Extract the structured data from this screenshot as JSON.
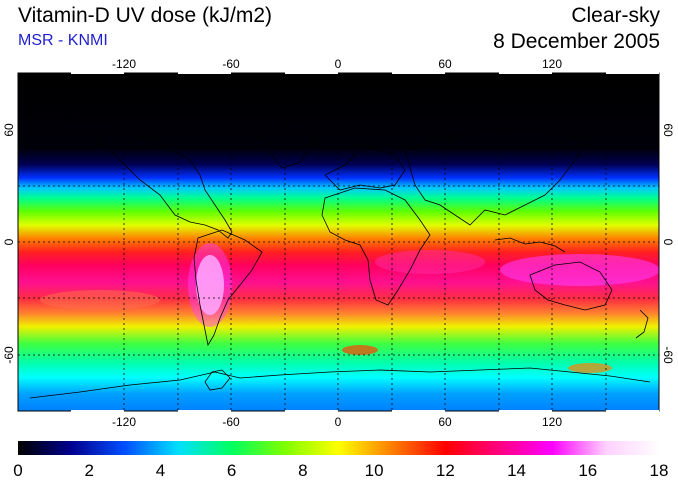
{
  "header": {
    "title": "Vitamin-D UV dose (kJ/m2)",
    "subtitle": "MSR - KNMI",
    "condition": "Clear-sky",
    "date": "8 December 2005"
  },
  "map": {
    "lon_ticks": [
      "-120",
      "-60",
      "0",
      "60",
      "120"
    ],
    "lat_ticks_left": [
      "60",
      "0",
      "-60"
    ],
    "lat_ticks_right": [
      "60",
      "0",
      "-60"
    ]
  },
  "colorbar": {
    "labels": [
      "0",
      "2",
      "4",
      "6",
      "8",
      "10",
      "12",
      "14",
      "16",
      "18"
    ],
    "min": 0,
    "max": 18,
    "colors": [
      "#000000",
      "#00008f",
      "#0050ff",
      "#00e0ff",
      "#00ff60",
      "#80ff00",
      "#ffff00",
      "#ff8000",
      "#ff0000",
      "#ff0080",
      "#ff00ff",
      "#ffd0ff",
      "#ffffff"
    ]
  }
}
